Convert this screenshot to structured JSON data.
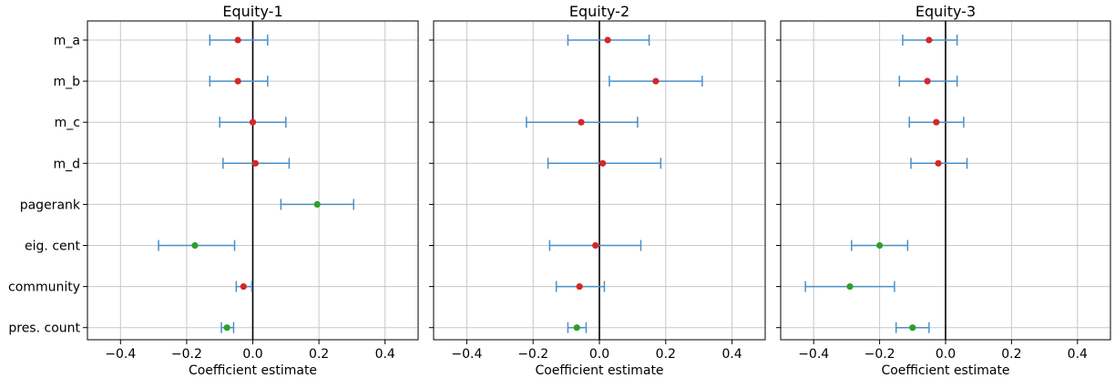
{
  "chart_data": [
    {
      "type": "scatter",
      "title": "Equity-1",
      "xlabel": "Coefficient estimate",
      "xlim": [
        -0.5,
        0.5
      ],
      "xticks": [
        -0.4,
        -0.2,
        0.0,
        0.2,
        0.4
      ],
      "xtick_labels": [
        "−0.4",
        "−0.2",
        "0.0",
        "0.2",
        "0.4"
      ],
      "categories": [
        "m_a",
        "m_b",
        "m_c",
        "m_d",
        "pagerank",
        "eig. cent",
        "community",
        "pres. count"
      ],
      "points": [
        {
          "estimate": -0.045,
          "ci": [
            -0.13,
            0.045
          ],
          "significant": false
        },
        {
          "estimate": -0.045,
          "ci": [
            -0.13,
            0.045
          ],
          "significant": false
        },
        {
          "estimate": 0.0,
          "ci": [
            -0.1,
            0.1
          ],
          "significant": false
        },
        {
          "estimate": 0.008,
          "ci": [
            -0.09,
            0.11
          ],
          "significant": false
        },
        {
          "estimate": 0.195,
          "ci": [
            0.085,
            0.305
          ],
          "significant": true
        },
        {
          "estimate": -0.175,
          "ci": [
            -0.285,
            -0.055
          ],
          "significant": true
        },
        {
          "estimate": -0.028,
          "ci": [
            -0.05,
            -0.003
          ],
          "significant": false
        },
        {
          "estimate": -0.078,
          "ci": [
            -0.095,
            -0.058
          ],
          "significant": true
        }
      ],
      "grid": true
    },
    {
      "type": "scatter",
      "title": "Equity-2",
      "xlabel": "Coefficient estimate",
      "xlim": [
        -0.5,
        0.5
      ],
      "xticks": [
        -0.4,
        -0.2,
        0.0,
        0.2,
        0.4
      ],
      "xtick_labels": [
        "−0.4",
        "−0.2",
        "0.0",
        "0.2",
        "0.4"
      ],
      "categories": [
        "m_a",
        "m_b",
        "m_c",
        "m_d",
        "pagerank",
        "eig. cent",
        "community",
        "pres. count"
      ],
      "points": [
        {
          "estimate": 0.025,
          "ci": [
            -0.095,
            0.15
          ],
          "significant": false
        },
        {
          "estimate": 0.17,
          "ci": [
            0.03,
            0.31
          ],
          "significant": false
        },
        {
          "estimate": -0.055,
          "ci": [
            -0.22,
            0.115
          ],
          "significant": false
        },
        {
          "estimate": 0.01,
          "ci": [
            -0.155,
            0.185
          ],
          "significant": false
        },
        {
          "estimate": null,
          "ci": null,
          "significant": false
        },
        {
          "estimate": -0.012,
          "ci": [
            -0.15,
            0.125
          ],
          "significant": false
        },
        {
          "estimate": -0.06,
          "ci": [
            -0.13,
            0.015
          ],
          "significant": false
        },
        {
          "estimate": -0.068,
          "ci": [
            -0.095,
            -0.04
          ],
          "significant": true
        }
      ],
      "grid": true
    },
    {
      "type": "scatter",
      "title": "Equity-3",
      "xlabel": "Coefficient estimate",
      "xlim": [
        -0.5,
        0.5
      ],
      "xticks": [
        -0.4,
        -0.2,
        0.0,
        0.2,
        0.4
      ],
      "xtick_labels": [
        "−0.4",
        "−0.2",
        "0.0",
        "0.2",
        "0.4"
      ],
      "categories": [
        "m_a",
        "m_b",
        "m_c",
        "m_d",
        "pagerank",
        "eig. cent",
        "community",
        "pres. count"
      ],
      "points": [
        {
          "estimate": -0.05,
          "ci": [
            -0.13,
            0.035
          ],
          "significant": false
        },
        {
          "estimate": -0.055,
          "ci": [
            -0.14,
            0.035
          ],
          "significant": false
        },
        {
          "estimate": -0.028,
          "ci": [
            -0.11,
            0.055
          ],
          "significant": false
        },
        {
          "estimate": -0.022,
          "ci": [
            -0.105,
            0.065
          ],
          "significant": false
        },
        {
          "estimate": null,
          "ci": null,
          "significant": false
        },
        {
          "estimate": -0.2,
          "ci": [
            -0.285,
            -0.115
          ],
          "significant": true
        },
        {
          "estimate": -0.29,
          "ci": [
            -0.425,
            -0.155
          ],
          "significant": true
        },
        {
          "estimate": -0.1,
          "ci": [
            -0.15,
            -0.05
          ],
          "significant": true
        }
      ],
      "grid": true
    }
  ],
  "colors": {
    "errorbar": "#4a90c8",
    "point_default": "#d62728",
    "point_significant": "#2ca02c",
    "zero_line": "#000000",
    "grid": "#c8c8c8",
    "frame": "#000000"
  }
}
